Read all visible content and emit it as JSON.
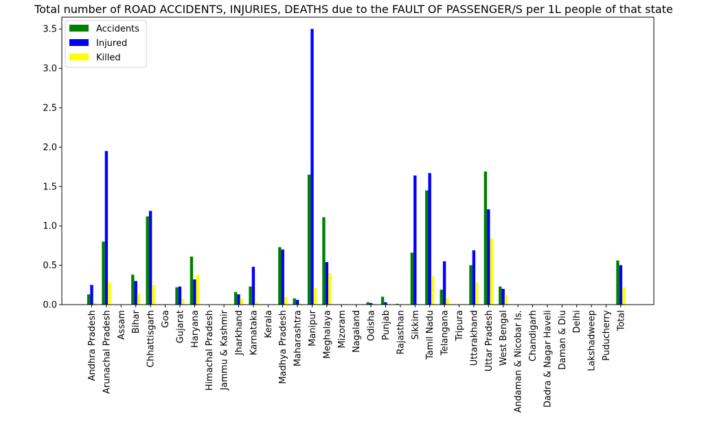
{
  "chart_data": {
    "type": "bar",
    "title": "Total number of ROAD ACCIDENTS, INJURIES, DEATHS due to the FAULT OF PASSENGER/S per 1L people of that state",
    "xlabel": "",
    "ylabel": "",
    "ylim": [
      0,
      3.65
    ],
    "yticks": [
      "0.0",
      "0.5",
      "1.0",
      "1.5",
      "2.0",
      "2.5",
      "3.0",
      "3.5"
    ],
    "grid": false,
    "legend_position": "top-left",
    "categories": [
      "Andhra Pradesh",
      "Arunachal Pradesh",
      "Assam",
      "Bihar",
      "Chhattisgarh",
      "Goa",
      "Gujarat",
      "Haryana",
      "Himachal Pradesh",
      "Jammu & Kashmir",
      "Jharkhand",
      "Karnataka",
      "Kerala",
      "Madhya Pradesh",
      "Maharashtra",
      "Manipur",
      "Meghalaya",
      "Mizoram",
      "Nagaland",
      "Odisha",
      "Punjab",
      "Rajasthan",
      "Sikkim",
      "Tamil Nadu",
      "Telangana",
      "Tripura",
      "Uttarakhand",
      "Uttar Pradesh",
      "West Bengal",
      "Andaman & Nicobar Is.",
      "Chandigarh",
      "Dadra & Nagar Haveli",
      "Daman & Diu",
      "Delhi",
      "Lakshadweep",
      "Puducherry",
      "Total"
    ],
    "series": [
      {
        "name": "Accidents",
        "color": "#008000",
        "values": [
          0.13,
          0.8,
          0,
          0.38,
          1.12,
          0,
          0.22,
          0.61,
          0,
          0,
          0.16,
          0.23,
          0,
          0.73,
          0.08,
          1.65,
          1.11,
          0,
          0,
          0.03,
          0.1,
          0.01,
          0.66,
          1.45,
          0.19,
          0,
          0.5,
          1.69,
          0.23,
          0,
          0,
          0,
          0,
          0,
          0,
          0,
          0.56
        ]
      },
      {
        "name": "Injured",
        "color": "#0000ff",
        "values": [
          0.25,
          1.95,
          0,
          0.3,
          1.19,
          0,
          0.23,
          0.32,
          0,
          0,
          0.13,
          0.48,
          0,
          0.7,
          0.06,
          3.5,
          0.54,
          0,
          0,
          0.02,
          0.03,
          0,
          1.64,
          1.67,
          0.55,
          0,
          0.69,
          1.21,
          0.2,
          0,
          0,
          0,
          0,
          0,
          0,
          0,
          0.5
        ]
      },
      {
        "name": "Killed",
        "color": "#ffff00",
        "values": [
          0.02,
          0.29,
          0,
          0.14,
          0.25,
          0,
          0.07,
          0.38,
          0,
          0,
          0.08,
          0.03,
          0,
          0.1,
          0.01,
          0.21,
          0.4,
          0,
          0,
          0.01,
          0.01,
          0,
          0,
          0.36,
          0.08,
          0,
          0.28,
          0.84,
          0.12,
          0,
          0,
          0,
          0,
          0,
          0,
          0,
          0.22
        ]
      }
    ]
  }
}
